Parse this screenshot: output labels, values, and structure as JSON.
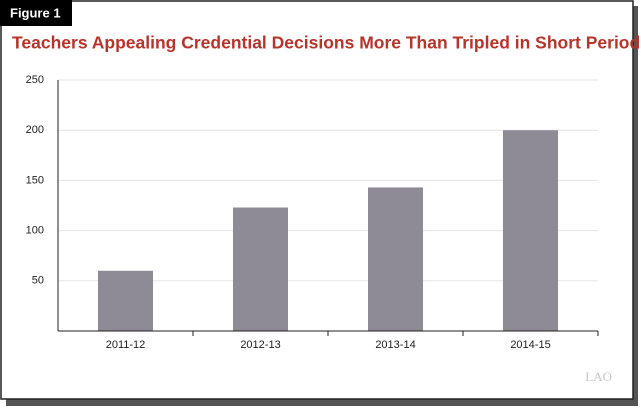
{
  "figure_label": "Figure 1",
  "chart_data": {
    "type": "bar",
    "title": "Teachers Appealing Credential Decisions More Than Tripled in Short Period",
    "categories": [
      "2011-12",
      "2012-13",
      "2013-14",
      "2014-15"
    ],
    "values": [
      60,
      123,
      143,
      200
    ],
    "color": "#8f8b96",
    "ylim": [
      0,
      250
    ],
    "yticks": [
      50,
      100,
      150,
      200,
      250
    ],
    "grid": true
  },
  "watermark": "LAO"
}
